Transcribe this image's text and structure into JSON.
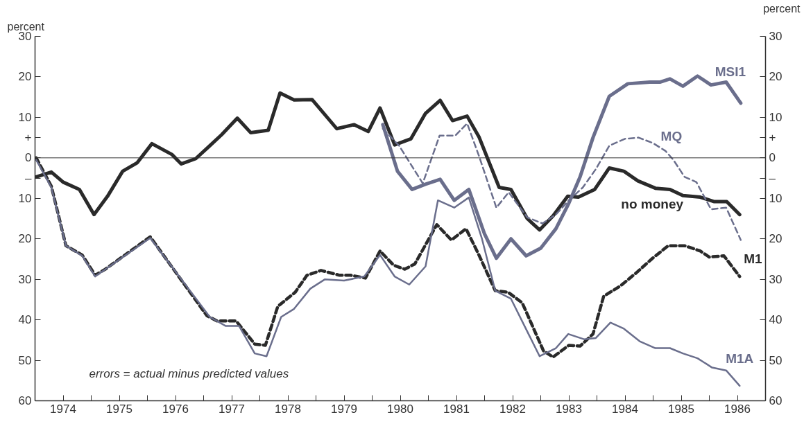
{
  "chart_data": {
    "type": "line",
    "ylabel": "percent",
    "y2label": "percent",
    "xlim": [
      1974,
      1987
    ],
    "xticks": [
      {
        "value": 1974,
        "label": null
      },
      {
        "value": 1974.5,
        "label": "1974"
      },
      {
        "value": 1975,
        "label": null
      },
      {
        "value": 1975.5,
        "label": "1975"
      },
      {
        "value": 1976,
        "label": null
      },
      {
        "value": 1976.5,
        "label": "1976"
      },
      {
        "value": 1977,
        "label": null
      },
      {
        "value": 1977.5,
        "label": "1977"
      },
      {
        "value": 1978,
        "label": null
      },
      {
        "value": 1978.5,
        "label": "1978"
      },
      {
        "value": 1979,
        "label": null
      },
      {
        "value": 1979.5,
        "label": "1979"
      },
      {
        "value": 1980,
        "label": null
      },
      {
        "value": 1980.5,
        "label": "1980"
      },
      {
        "value": 1981,
        "label": null
      },
      {
        "value": 1981.5,
        "label": "1981"
      },
      {
        "value": 1982,
        "label": null
      },
      {
        "value": 1982.5,
        "label": "1982"
      },
      {
        "value": 1983,
        "label": null
      },
      {
        "value": 1983.5,
        "label": "1983"
      },
      {
        "value": 1984,
        "label": null
      },
      {
        "value": 1984.5,
        "label": "1984"
      },
      {
        "value": 1985,
        "label": null
      },
      {
        "value": 1985.5,
        "label": "1985"
      },
      {
        "value": 1986,
        "label": null
      },
      {
        "value": 1986.5,
        "label": "1986"
      },
      {
        "value": 1987,
        "label": null
      }
    ],
    "ylim": [
      -60,
      30
    ],
    "yticks": [
      30,
      20,
      10,
      {
        "value": 5,
        "label": "+"
      },
      0,
      {
        "value": -5,
        "label": "–"
      },
      {
        "value": -10,
        "label": "10"
      },
      {
        "value": -20,
        "label": "20"
      },
      {
        "value": -30,
        "label": "30"
      },
      {
        "value": -40,
        "label": "40"
      },
      {
        "value": -50,
        "label": "50"
      },
      {
        "value": -60,
        "label": "60"
      }
    ],
    "y2lim": [
      -60,
      30
    ],
    "y2ticks": [
      30,
      20,
      10,
      {
        "value": 5,
        "label": "+"
      },
      0,
      {
        "value": -5,
        "label": "–"
      },
      {
        "value": -10,
        "label": "10"
      },
      {
        "value": -20,
        "label": "20"
      },
      {
        "value": -30,
        "label": "30"
      },
      {
        "value": -40,
        "label": "40"
      },
      {
        "value": -50,
        "label": "50"
      },
      {
        "value": -60,
        "label": "60"
      }
    ],
    "grid": false,
    "legend": false,
    "ref_lines": [
      {
        "axis": "y",
        "value": 0,
        "label": null,
        "color": "#333333",
        "line_style": "solid"
      }
    ],
    "annotations": [
      "errors = actual minus predicted values"
    ],
    "series": [
      {
        "name": "no money",
        "color": "#2a2a2a",
        "line_style": "solid",
        "x": [
          1974.02,
          1974.29,
          1974.5,
          1974.79,
          1975.05,
          1975.29,
          1975.56,
          1975.82,
          1976.08,
          1976.44,
          1976.6,
          1976.86,
          1977.11,
          1977.32,
          1977.6,
          1977.84,
          1978.15,
          1978.36,
          1978.61,
          1978.93,
          1979.37,
          1979.68,
          1979.93,
          1980.14,
          1980.4,
          1980.69,
          1980.95,
          1981.21,
          1981.43,
          1981.69,
          1981.9,
          1982.26,
          1982.47,
          1982.76,
          1982.98,
          1983.22,
          1983.48,
          1983.67,
          1983.96,
          1984.22,
          1984.48,
          1984.73,
          1985.04,
          1985.3,
          1985.53,
          1985.84,
          1986.08,
          1986.31,
          1986.54
        ],
        "values": [
          -4.7,
          -3.5,
          -6,
          -7.8,
          -14,
          -9.5,
          -3.3,
          -1.2,
          3.5,
          0.8,
          -1.5,
          -0.2,
          3,
          5.7,
          9.8,
          6.2,
          6.8,
          16,
          14.3,
          14.4,
          7.2,
          8.2,
          6.5,
          12.3,
          3.2,
          4.7,
          11,
          14.2,
          9.2,
          10.3,
          5.2,
          -7.3,
          -7.8,
          -15,
          -17.8,
          -14.3,
          -9.5,
          -9.7,
          -7.8,
          -2.5,
          -3.3,
          -5.7,
          -7.5,
          -7.8,
          -9.3,
          -9.7,
          -10.8,
          -10.8,
          -14
        ]
      },
      {
        "name": "MSI1",
        "color": "#6a6e8c",
        "line_style": "solid",
        "x": [
          1980.19,
          1980.45,
          1980.71,
          1980.95,
          1981.21,
          1981.46,
          1981.72,
          1982.0,
          1982.21,
          1982.47,
          1982.74,
          1983.0,
          1983.27,
          1983.5,
          1983.7,
          1983.93,
          1984.22,
          1984.55,
          1984.94,
          1985.12,
          1985.3,
          1985.53,
          1985.79,
          1986.03,
          1986.3,
          1986.56
        ],
        "values": [
          8.2,
          -3.3,
          -7.8,
          -6.5,
          -5.3,
          -10.5,
          -7.8,
          -18.8,
          -24.8,
          -20,
          -24.2,
          -22.3,
          -17.5,
          -11.2,
          -4.7,
          5,
          15.2,
          18.3,
          18.7,
          18.7,
          19.5,
          17.7,
          20.2,
          18,
          18.7,
          13.5
        ]
      },
      {
        "name": "MQ",
        "color": "#6a6e8c",
        "line_style": "dashed",
        "x": [
          1980.19,
          1980.48,
          1980.9,
          1981.2,
          1981.48,
          1981.69,
          1981.9,
          1982.21,
          1982.43,
          1982.76,
          1983.03,
          1983.27,
          1983.5,
          1983.75,
          1983.98,
          1984.22,
          1984.5,
          1984.74,
          1984.99,
          1985.22,
          1985.36,
          1985.56,
          1985.77,
          1986.03,
          1986.3,
          1986.56
        ],
        "values": [
          7.2,
          3,
          -6.3,
          5.5,
          5.5,
          8.5,
          0.5,
          -12.3,
          -8.5,
          -14.7,
          -16.2,
          -14,
          -10.5,
          -7.3,
          -2.8,
          3,
          4.7,
          5,
          3.7,
          1.7,
          -0.5,
          -4.7,
          -6,
          -12.7,
          -12.3,
          -20.3
        ]
      },
      {
        "name": "M1",
        "color": "#2a2a2a",
        "line_style": "dashed",
        "x": [
          1974.02,
          1974.29,
          1974.55,
          1974.84,
          1975.07,
          1975.25,
          1976.05,
          1977.06,
          1977.24,
          1977.58,
          1977.91,
          1978.1,
          1978.32,
          1978.63,
          1978.84,
          1979.09,
          1979.42,
          1979.62,
          1979.88,
          1980.14,
          1980.38,
          1980.58,
          1980.76,
          1981.15,
          1981.41,
          1981.67,
          1981.9,
          1982.19,
          1982.42,
          1982.67,
          1983.05,
          1983.22,
          1983.5,
          1983.7,
          1983.93,
          1984.12,
          1984.42,
          1984.7,
          1984.99,
          1985.27,
          1985.56,
          1985.84,
          1986.0,
          1986.26,
          1986.54
        ],
        "values": [
          0,
          -7,
          -21.7,
          -24,
          -29,
          -27.5,
          -19.5,
          -39,
          -40.3,
          -40.3,
          -46,
          -46.3,
          -36.7,
          -33.2,
          -29,
          -27.8,
          -29,
          -29,
          -29.7,
          -23,
          -26.5,
          -27.5,
          -26.2,
          -16.5,
          -20.3,
          -17.5,
          -24,
          -32.8,
          -33.2,
          -35.8,
          -47.7,
          -49.2,
          -46.3,
          -46.5,
          -43.5,
          -34.2,
          -31.6,
          -28.4,
          -24.8,
          -21.7,
          -21.7,
          -23,
          -24.5,
          -24.2,
          -29.3
        ]
      },
      {
        "name": "M1A",
        "color": "#6a6e8c",
        "line_style": "solid",
        "x": [
          1974.02,
          1974.29,
          1974.55,
          1974.84,
          1975.07,
          1976.05,
          1977.11,
          1977.39,
          1977.63,
          1977.91,
          1978.12,
          1978.38,
          1978.61,
          1978.9,
          1979.16,
          1979.5,
          1979.86,
          1980.14,
          1980.4,
          1980.66,
          1980.95,
          1981.17,
          1981.46,
          1981.72,
          1981.95,
          1982.19,
          1982.47,
          1982.98,
          1983.27,
          1983.49,
          1983.77,
          1983.98,
          1984.24,
          1984.48,
          1984.76,
          1985.04,
          1985.3,
          1985.53,
          1985.79,
          1986.05,
          1986.3,
          1986.54
        ],
        "values": [
          -0.5,
          -7.3,
          -21.7,
          -24.2,
          -29.3,
          -19.8,
          -39.3,
          -41.5,
          -41.5,
          -48.3,
          -49,
          -39.3,
          -37.3,
          -32.3,
          -30,
          -30.3,
          -29.3,
          -24,
          -29.3,
          -31.3,
          -26.8,
          -10.5,
          -12.3,
          -9.8,
          -19.8,
          -32.8,
          -34.8,
          -49,
          -47,
          -43.5,
          -44.8,
          -44.5,
          -40.7,
          -42.2,
          -45.3,
          -47,
          -47,
          -48.3,
          -49.5,
          -51.8,
          -52.5,
          -56.3
        ]
      }
    ]
  }
}
